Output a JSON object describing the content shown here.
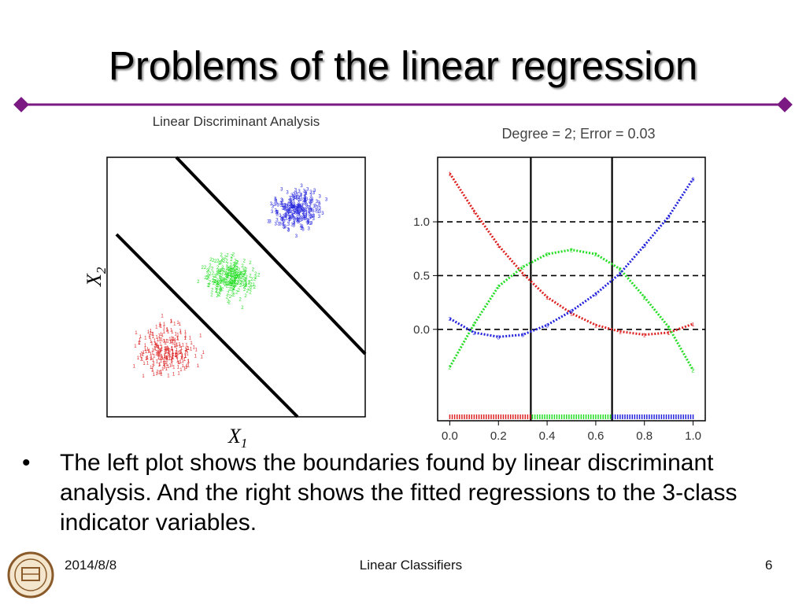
{
  "slide": {
    "title": "Problems of the linear regression",
    "bullet": "The left plot shows the boundaries found by linear discriminant analysis. And the right shows the fitted regressions to the 3-class indicator variables.",
    "footer": {
      "date": "2014/8/8",
      "center": "Linear Classifiers",
      "page": "6"
    }
  },
  "chart_data": [
    {
      "type": "scatter",
      "title": "Linear Discriminant Analysis",
      "xlabel": "X1",
      "ylabel": "X2",
      "legend": "none",
      "series": [
        {
          "name": "1",
          "color": "#dd2222"
        },
        {
          "name": "2",
          "color": "#22dd22"
        },
        {
          "name": "3",
          "color": "#2222dd"
        }
      ]
    },
    {
      "type": "line",
      "title": "Degree = 2; Error = 0.03",
      "x_ticks": [
        "0.0",
        "0.2",
        "0.4",
        "0.6",
        "0.8",
        "1.0"
      ],
      "y_ticks": [
        "0.0",
        "0.5",
        "1.0"
      ],
      "xlim": [
        -0.05,
        1.05
      ],
      "ylim": [
        -0.85,
        1.6
      ],
      "vertical_lines": [
        0.333,
        0.667
      ],
      "dashed_hlines": [
        0.0,
        0.5,
        1.0
      ],
      "series": [
        {
          "name": "1",
          "color": "#dd2222",
          "x": [
            0.0,
            0.1,
            0.2,
            0.3,
            0.4,
            0.5,
            0.6,
            0.7,
            0.8,
            0.9,
            1.0
          ],
          "y": [
            1.45,
            1.1,
            0.78,
            0.52,
            0.3,
            0.15,
            0.04,
            -0.02,
            -0.05,
            -0.03,
            0.05
          ]
        },
        {
          "name": "2",
          "color": "#22dd22",
          "x": [
            0.0,
            0.1,
            0.2,
            0.3,
            0.4,
            0.5,
            0.6,
            0.7,
            0.8,
            0.9,
            1.0
          ],
          "y": [
            -0.35,
            0.05,
            0.4,
            0.58,
            0.7,
            0.74,
            0.7,
            0.56,
            0.3,
            0.02,
            -0.38
          ]
        },
        {
          "name": "3",
          "color": "#2222dd",
          "x": [
            0.0,
            0.1,
            0.2,
            0.3,
            0.4,
            0.5,
            0.6,
            0.7,
            0.8,
            0.9,
            1.0
          ],
          "y": [
            0.1,
            -0.03,
            -0.07,
            -0.05,
            0.04,
            0.17,
            0.33,
            0.52,
            0.78,
            1.05,
            1.4
          ]
        }
      ]
    }
  ]
}
